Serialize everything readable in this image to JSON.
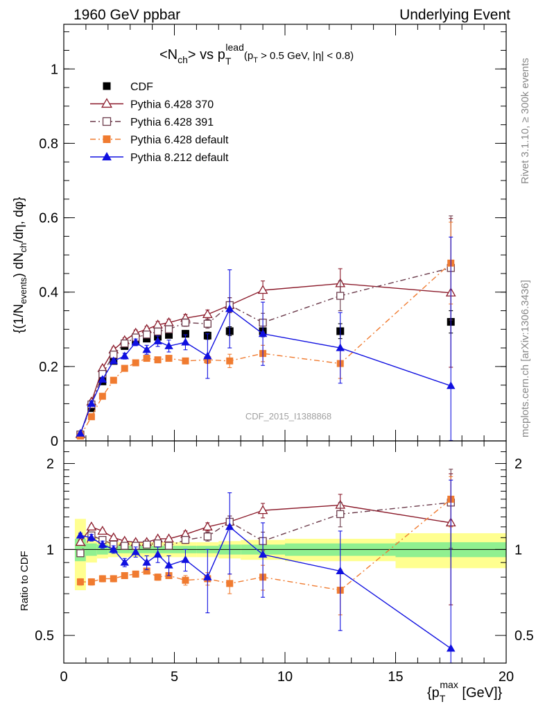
{
  "header": {
    "left": "1960 GeV ppbar",
    "right": "Underlying Event",
    "side_top": "Rivet 3.1.10, ≥ 300k events",
    "side_bottom": "mcplots.cern.ch [arXiv:1306.3436]",
    "watermark": "CDF_2015_I1388868"
  },
  "title": {
    "n": "<N",
    "n_sub": "ch",
    "vs": "> vs p",
    "p_sup": "lead",
    "p_sub": "T",
    "cut_open": "(p",
    "cut_sub": "T",
    "cut_rest": " > 0.5 GeV, |η| < 0.8)"
  },
  "axes": {
    "top_ylabel": "{(1/N_events) dN_ch/dη, dφ}",
    "bottom_ylabel": "Ratio to CDF",
    "xlabel": "{p_T^max [GeV]}",
    "top_yticks": [
      "0",
      "0.2",
      "0.4",
      "0.6",
      "0.8",
      "1"
    ],
    "bottom_yticks": [
      "0.5",
      "1",
      "2"
    ],
    "xticks": [
      "0",
      "5",
      "10",
      "15",
      "20"
    ]
  },
  "legend": [
    {
      "label": "CDF",
      "color": "#000000",
      "marker": "filled-square",
      "line": "none"
    },
    {
      "label": "Pythia 6.428 370",
      "color": "#8b1a2a",
      "marker": "open-triangle",
      "line": "solid"
    },
    {
      "label": "Pythia 6.428 391",
      "color": "#6b3a4a",
      "marker": "open-square",
      "line": "dashdot"
    },
    {
      "label": "Pythia 6.428 default",
      "color": "#f07b30",
      "marker": "filled-square",
      "line": "dashdot"
    },
    {
      "label": "Pythia 8.212 default",
      "color": "#1010e0",
      "marker": "filled-triangle",
      "line": "solid"
    }
  ],
  "chart_data": {
    "type": "line",
    "title": "<N_ch> vs p_T^lead (p_T > 0.5 GeV, |η| < 0.8)",
    "xlabel": "{p_T^max [GeV]}",
    "ylabel": "{(1/N_events) dN_ch/dη, dφ}",
    "xlim": [
      0,
      20
    ],
    "ylim": [
      0,
      1.12
    ],
    "ratio_ylabel": "Ratio to CDF",
    "ratio_ylim": [
      0.4,
      2.4
    ],
    "ratio_scale": "log",
    "x": [
      0.75,
      1.25,
      1.75,
      2.25,
      2.75,
      3.25,
      3.75,
      4.25,
      4.75,
      5.5,
      6.5,
      7.5,
      9.0,
      12.5,
      17.5
    ],
    "data_err": [
      0.003,
      0.005,
      0.006,
      0.006,
      0.007,
      0.007,
      0.007,
      0.008,
      0.008,
      0.009,
      0.01,
      0.012,
      0.015,
      0.02,
      0.03
    ],
    "band": [
      {
        "x0": 0.5,
        "x1": 1.0,
        "stat": 0.09,
        "syst": 0.28
      },
      {
        "x0": 1.0,
        "x1": 1.5,
        "stat": 0.05,
        "syst": 0.1
      },
      {
        "x0": 1.5,
        "x1": 2.0,
        "stat": 0.04,
        "syst": 0.07
      },
      {
        "x0": 2.0,
        "x1": 3.0,
        "stat": 0.03,
        "syst": 0.06
      },
      {
        "x0": 3.0,
        "x1": 4.0,
        "stat": 0.03,
        "syst": 0.06
      },
      {
        "x0": 4.0,
        "x1": 5.0,
        "stat": 0.03,
        "syst": 0.06
      },
      {
        "x0": 5.0,
        "x1": 6.0,
        "stat": 0.03,
        "syst": 0.06
      },
      {
        "x0": 6.0,
        "x1": 7.0,
        "stat": 0.03,
        "syst": 0.06
      },
      {
        "x0": 7.0,
        "x1": 8.0,
        "stat": 0.04,
        "syst": 0.07
      },
      {
        "x0": 8.0,
        "x1": 10.0,
        "stat": 0.04,
        "syst": 0.08
      },
      {
        "x0": 10.0,
        "x1": 15.0,
        "stat": 0.05,
        "syst": 0.09
      },
      {
        "x0": 15.0,
        "x1": 20.0,
        "stat": 0.06,
        "syst": 0.14
      }
    ],
    "series": [
      {
        "name": "CDF",
        "color": "#000000",
        "marker": "filled-square",
        "line": "none",
        "values": [
          0.017,
          0.088,
          0.16,
          0.215,
          0.255,
          0.27,
          0.275,
          0.28,
          0.285,
          0.288,
          0.283,
          0.295,
          0.295,
          0.295,
          0.32
        ],
        "errors": [
          0.003,
          0.005,
          0.006,
          0.006,
          0.007,
          0.007,
          0.007,
          0.008,
          0.008,
          0.009,
          0.01,
          0.012,
          0.015,
          0.02,
          0.03
        ],
        "ratio": [
          1,
          1,
          1,
          1,
          1,
          1,
          1,
          1,
          1,
          1,
          1,
          1,
          1,
          1,
          1
        ],
        "ratio_errors": [
          0,
          0,
          0,
          0,
          0,
          0,
          0,
          0,
          0,
          0,
          0,
          0,
          0,
          0,
          0
        ]
      },
      {
        "name": "Pythia 6.428 370",
        "color": "#8b1a2a",
        "marker": "open-triangle",
        "line": "solid",
        "values": [
          0.018,
          0.105,
          0.195,
          0.245,
          0.27,
          0.29,
          0.3,
          0.312,
          0.318,
          0.33,
          0.34,
          0.365,
          0.405,
          0.423,
          0.398
        ],
        "errors": [
          0.003,
          0.005,
          0.006,
          0.007,
          0.007,
          0.008,
          0.008,
          0.009,
          0.009,
          0.01,
          0.012,
          0.02,
          0.025,
          0.04,
          0.2
        ],
        "ratio": [
          1.06,
          1.2,
          1.16,
          1.1,
          1.07,
          1.06,
          1.06,
          1.09,
          1.09,
          1.13,
          1.2,
          1.25,
          1.37,
          1.43,
          1.24
        ],
        "ratio_errors": [
          0.02,
          0.02,
          0.02,
          0.02,
          0.02,
          0.02,
          0.02,
          0.02,
          0.02,
          0.03,
          0.04,
          0.06,
          0.08,
          0.13,
          0.6
        ]
      },
      {
        "name": "Pythia 6.428 391",
        "color": "#6b3a4a",
        "marker": "open-square",
        "line": "dashdot",
        "values": [
          0.017,
          0.098,
          0.18,
          0.232,
          0.262,
          0.278,
          0.286,
          0.294,
          0.3,
          0.318,
          0.315,
          0.365,
          0.318,
          0.39,
          0.465
        ],
        "errors": [
          0.003,
          0.005,
          0.006,
          0.007,
          0.007,
          0.008,
          0.008,
          0.009,
          0.009,
          0.01,
          0.012,
          0.02,
          0.025,
          0.04,
          0.14
        ],
        "ratio": [
          0.97,
          1.12,
          1.08,
          1.04,
          1.03,
          1.03,
          1.04,
          1.05,
          1.03,
          1.08,
          1.11,
          1.25,
          1.07,
          1.33,
          1.46
        ],
        "ratio_errors": [
          0.02,
          0.02,
          0.02,
          0.02,
          0.02,
          0.02,
          0.02,
          0.02,
          0.02,
          0.03,
          0.04,
          0.06,
          0.08,
          0.13,
          0.45
        ]
      },
      {
        "name": "Pythia 6.428 default",
        "color": "#f07b30",
        "marker": "filled-square",
        "line": "dashdot",
        "values": [
          0.013,
          0.065,
          0.12,
          0.163,
          0.195,
          0.21,
          0.222,
          0.218,
          0.222,
          0.215,
          0.218,
          0.215,
          0.235,
          0.208,
          0.478
        ],
        "errors": [
          0.003,
          0.004,
          0.005,
          0.005,
          0.006,
          0.006,
          0.006,
          0.007,
          0.007,
          0.008,
          0.01,
          0.018,
          0.022,
          0.04,
          0.11
        ],
        "ratio": [
          0.77,
          0.77,
          0.79,
          0.79,
          0.81,
          0.82,
          0.84,
          0.8,
          0.81,
          0.78,
          0.79,
          0.76,
          0.8,
          0.72,
          1.5
        ],
        "ratio_errors": [
          0.02,
          0.02,
          0.02,
          0.02,
          0.02,
          0.02,
          0.02,
          0.02,
          0.02,
          0.03,
          0.04,
          0.06,
          0.08,
          0.13,
          0.3
        ]
      },
      {
        "name": "Pythia 8.212 default",
        "color": "#1010e0",
        "marker": "filled-triangle",
        "line": "solid",
        "values": [
          0.02,
          0.1,
          0.165,
          0.215,
          0.228,
          0.265,
          0.245,
          0.268,
          0.255,
          0.265,
          0.228,
          0.355,
          0.288,
          0.25,
          0.148
        ],
        "errors": [
          0.003,
          0.005,
          0.006,
          0.007,
          0.008,
          0.009,
          0.012,
          0.014,
          0.016,
          0.02,
          0.06,
          0.105,
          0.085,
          0.095,
          0.4
        ],
        "ratio": [
          1.12,
          1.1,
          1.04,
          1.0,
          0.9,
          0.98,
          0.9,
          0.96,
          0.88,
          0.92,
          0.8,
          1.2,
          0.96,
          0.84,
          0.45
        ],
        "ratio_errors": [
          0.02,
          0.03,
          0.03,
          0.03,
          0.03,
          0.04,
          0.05,
          0.06,
          0.07,
          0.08,
          0.2,
          0.38,
          0.28,
          0.32,
          1.3
        ]
      }
    ]
  }
}
